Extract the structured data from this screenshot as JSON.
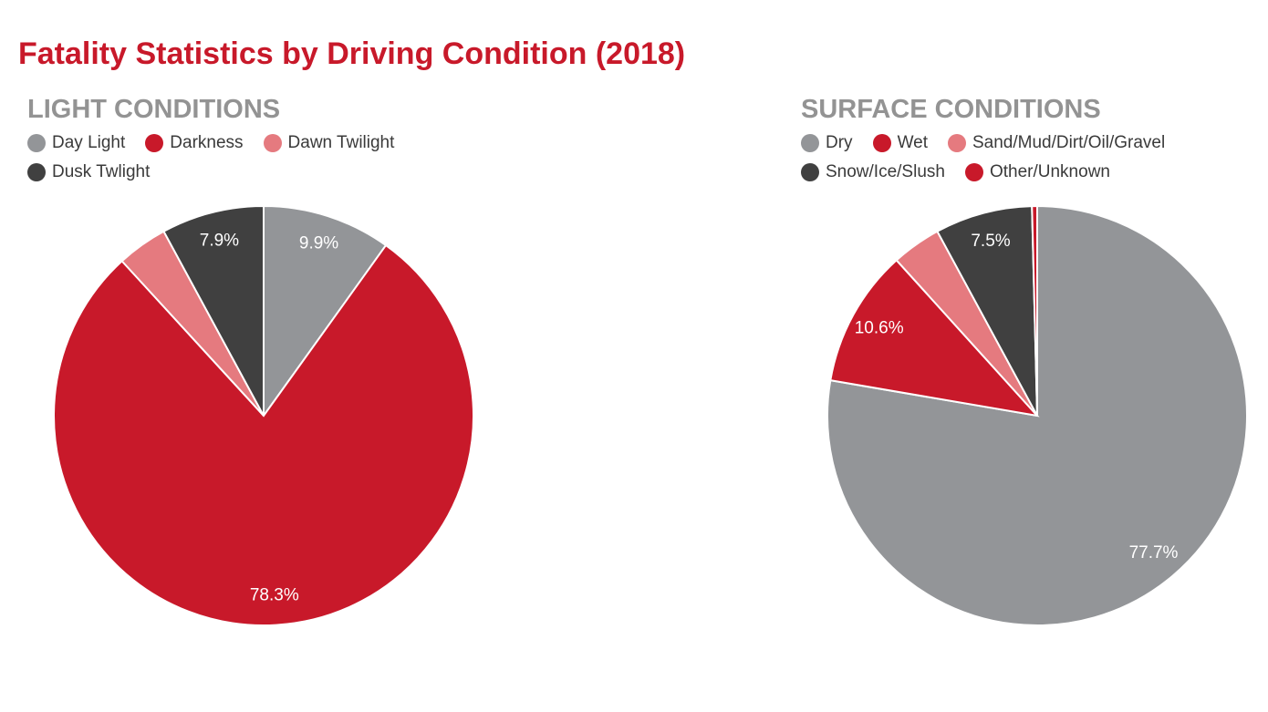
{
  "title": "Fatality Statistics by Driving Condition (2018)",
  "chart_data": [
    {
      "type": "pie",
      "title": "LIGHT CONDITIONS",
      "categories": [
        "Day Light",
        "Darkness",
        "Dawn Twilight",
        "Dusk Twlight"
      ],
      "values": [
        9.9,
        78.3,
        3.9,
        7.9
      ],
      "data_labels": [
        "9.9%",
        "78.3%",
        "",
        "7.9%"
      ],
      "colors": [
        "#939598",
        "#c8192a",
        "#e57a7f",
        "#404040"
      ],
      "start_angle": "12 o'clock",
      "direction": "clockwise",
      "legend_position": "top-left"
    },
    {
      "type": "pie",
      "title": "SURFACE CONDITIONS",
      "categories": [
        "Dry",
        "Wet",
        "Sand/Mud/Dirt/Oil/Gravel",
        "Snow/Ice/Slush",
        "Other/Unknown"
      ],
      "values": [
        77.7,
        10.6,
        3.8,
        7.5,
        0.4
      ],
      "data_labels": [
        "77.7%",
        "10.6%",
        "",
        "7.5%",
        ""
      ],
      "colors": [
        "#939598",
        "#c8192a",
        "#e57a7f",
        "#404040",
        "#c8192a"
      ],
      "start_angle": "12 o'clock",
      "direction": "clockwise",
      "legend_position": "top-left"
    }
  ]
}
